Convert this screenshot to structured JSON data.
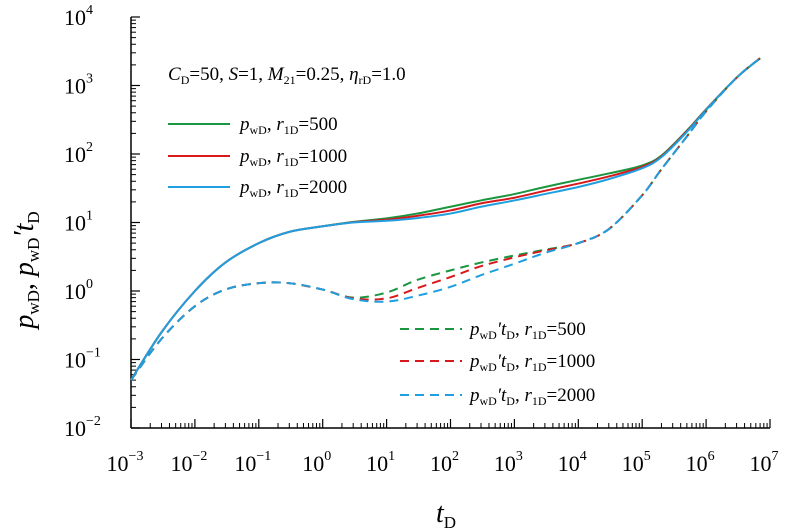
{
  "chart_data": {
    "type": "line",
    "xscale": "log",
    "yscale": "log",
    "xlim": [
      0.001,
      10000000
    ],
    "ylim": [
      0.01,
      10000
    ],
    "x_ticks": [
      {
        "base": "10",
        "exp": "−3"
      },
      {
        "base": "10",
        "exp": "−2"
      },
      {
        "base": "10",
        "exp": "−1"
      },
      {
        "base": "10",
        "exp": "0"
      },
      {
        "base": "10",
        "exp": "1"
      },
      {
        "base": "10",
        "exp": "2"
      },
      {
        "base": "10",
        "exp": "3"
      },
      {
        "base": "10",
        "exp": "4"
      },
      {
        "base": "10",
        "exp": "5"
      },
      {
        "base": "10",
        "exp": "6"
      },
      {
        "base": "10",
        "exp": "7"
      }
    ],
    "y_ticks": [
      {
        "base": "10",
        "exp": "−2"
      },
      {
        "base": "10",
        "exp": "−1"
      },
      {
        "base": "10",
        "exp": "0"
      },
      {
        "base": "10",
        "exp": "1"
      },
      {
        "base": "10",
        "exp": "2"
      },
      {
        "base": "10",
        "exp": "3"
      },
      {
        "base": "10",
        "exp": "4"
      }
    ],
    "xlabel": {
      "main": "t",
      "sub": "D"
    },
    "ylabel": "p_wD, p_wD′t_D",
    "annotation": "C_D=50, S=1, M_21=0.25, η_rD=1.0",
    "series": [
      {
        "name": "p_wD, r_1D=500",
        "style": "solid",
        "color": "#1a9641",
        "x": [
          0.001,
          0.003,
          0.01,
          0.03,
          0.1,
          0.3,
          1,
          3,
          10,
          30,
          100,
          300,
          1000,
          3000,
          10000,
          30000,
          100000,
          200000,
          500000,
          1000000,
          3000000,
          7000000
        ],
        "y": [
          0.05,
          0.25,
          1.0,
          2.6,
          5.0,
          7.3,
          8.8,
          10.2,
          11.5,
          13.5,
          17,
          21,
          26,
          33,
          42,
          52,
          68,
          95,
          220,
          450,
          1300,
          2500
        ]
      },
      {
        "name": "p_wD, r_1D=1000",
        "style": "solid",
        "color": "#d7191c",
        "x": [
          0.001,
          0.003,
          0.01,
          0.03,
          0.1,
          0.3,
          1,
          3,
          10,
          30,
          100,
          300,
          1000,
          3000,
          10000,
          30000,
          100000,
          200000,
          500000,
          1000000,
          3000000,
          7000000
        ],
        "y": [
          0.05,
          0.25,
          1.0,
          2.6,
          5.0,
          7.3,
          8.8,
          10.1,
          11.0,
          12.5,
          15,
          19,
          23,
          29,
          37,
          47,
          65,
          92,
          215,
          445,
          1300,
          2500
        ]
      },
      {
        "name": "p_wD, r_1D=2000",
        "style": "solid",
        "color": "#1f9fe0",
        "x": [
          0.001,
          0.003,
          0.01,
          0.03,
          0.1,
          0.3,
          1,
          3,
          10,
          30,
          100,
          300,
          1000,
          3000,
          10000,
          30000,
          100000,
          200000,
          500000,
          1000000,
          3000000,
          7000000
        ],
        "y": [
          0.05,
          0.25,
          1.0,
          2.6,
          5.0,
          7.3,
          8.8,
          10.0,
          10.6,
          11.6,
          13.5,
          17,
          21,
          26,
          33,
          43,
          62,
          90,
          210,
          440,
          1300,
          2500
        ]
      },
      {
        "name": "p_wD′t_D, r_1D=500",
        "style": "dashed",
        "color": "#1a9641",
        "x": [
          0.001,
          0.003,
          0.01,
          0.03,
          0.1,
          0.3,
          1,
          3,
          10,
          30,
          100,
          300,
          1000,
          3000,
          10000,
          30000,
          100000,
          200000,
          500000,
          1000000,
          3000000,
          7000000
        ],
        "y": [
          0.05,
          0.2,
          0.6,
          1.05,
          1.3,
          1.3,
          1.05,
          0.8,
          0.95,
          1.45,
          2.0,
          2.6,
          3.3,
          4.0,
          5.0,
          8.0,
          25,
          60,
          180,
          420,
          1300,
          2500
        ]
      },
      {
        "name": "p_wD′t_D, r_1D=1000",
        "style": "dashed",
        "color": "#d7191c",
        "x": [
          0.001,
          0.003,
          0.01,
          0.03,
          0.1,
          0.3,
          1,
          3,
          10,
          30,
          100,
          300,
          1000,
          3000,
          10000,
          30000,
          100000,
          200000,
          500000,
          1000000,
          3000000,
          7000000
        ],
        "y": [
          0.05,
          0.2,
          0.6,
          1.05,
          1.3,
          1.3,
          1.05,
          0.78,
          0.78,
          1.1,
          1.6,
          2.3,
          3.1,
          3.9,
          5.0,
          8.0,
          25,
          60,
          180,
          420,
          1300,
          2500
        ]
      },
      {
        "name": "p_wD′t_D, r_1D=2000",
        "style": "dashed",
        "color": "#1f9fe0",
        "x": [
          0.001,
          0.003,
          0.01,
          0.03,
          0.1,
          0.3,
          1,
          3,
          10,
          30,
          100,
          300,
          1000,
          3000,
          10000,
          30000,
          100000,
          200000,
          500000,
          1000000,
          3000000,
          7000000
        ],
        "y": [
          0.05,
          0.2,
          0.6,
          1.05,
          1.3,
          1.3,
          1.05,
          0.76,
          0.7,
          0.85,
          1.15,
          1.7,
          2.5,
          3.6,
          5.0,
          8.0,
          25,
          60,
          180,
          420,
          1300,
          2500
        ]
      }
    ]
  }
}
